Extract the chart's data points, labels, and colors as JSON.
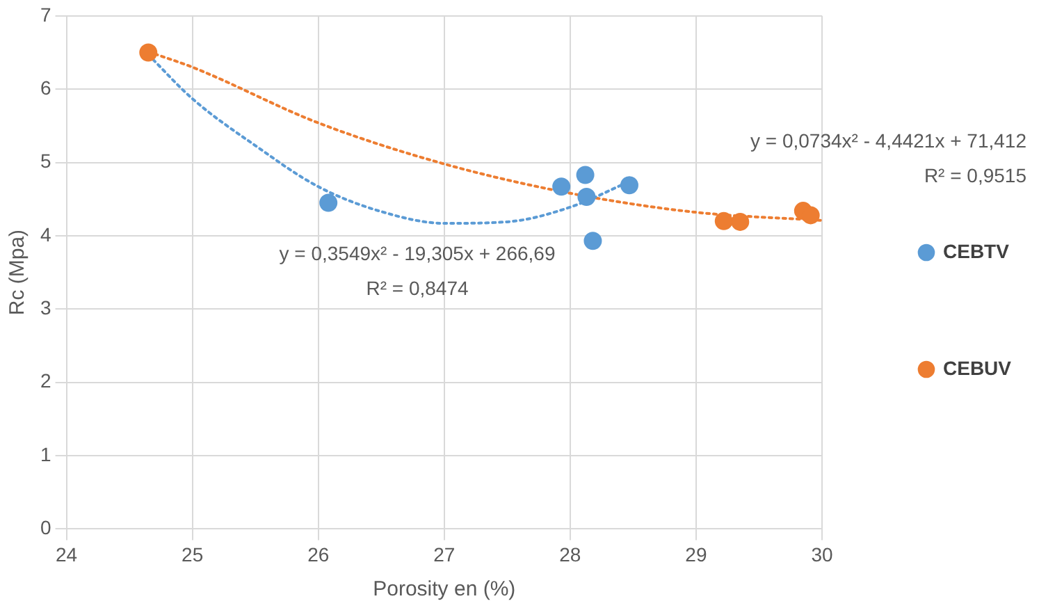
{
  "chart_data": {
    "type": "scatter",
    "xlabel": "Porosity en (%)",
    "ylabel": "Rc (Mpa)",
    "xlim": [
      24,
      30
    ],
    "xticks": [
      24,
      25,
      26,
      27,
      28,
      29,
      30
    ],
    "ylim": [
      0,
      7
    ],
    "yticks": [
      0,
      1,
      2,
      3,
      4,
      5,
      6,
      7
    ],
    "grid": true,
    "legend": "right",
    "marker": "circle",
    "series": [
      {
        "name": "CEBTV",
        "color": "#5b9bd5",
        "x": [
          26.08,
          27.93,
          28.12,
          28.13,
          28.18,
          28.47
        ],
        "values": [
          4.45,
          4.67,
          4.83,
          4.53,
          3.93,
          4.69
        ]
      },
      {
        "name": "CEBUV",
        "color": "#ed7d31",
        "x": [
          24.65,
          29.22,
          29.35,
          29.85,
          29.91
        ],
        "values": [
          6.5,
          4.2,
          4.19,
          4.34,
          4.28
        ]
      },
      {
        "type": "line",
        "color": "#5b9bd5",
        "marker": "none",
        "line_style": "dotted",
        "x": [
          24.65,
          25,
          25.5,
          26,
          26.5,
          27,
          27.5,
          28,
          28.47
        ],
        "values": [
          6.47,
          5.87,
          5.23,
          4.67,
          4.33,
          4.17,
          4.19,
          4.39,
          4.74
        ]
      },
      {
        "type": "line",
        "color": "#ed7d31",
        "marker": "none",
        "line_style": "dotted",
        "x": [
          24.65,
          25,
          26,
          27,
          28,
          29,
          30
        ],
        "values": [
          6.51,
          6.3,
          5.54,
          4.98,
          4.58,
          4.32,
          4.21
        ]
      }
    ],
    "annotations": [
      "y = 0,3549x² - 19,305x + 266,69",
      "R² = 0,8474",
      "y = 0,0734x² - 4,4421x + 71,412",
      "R² = 0,9515"
    ]
  }
}
